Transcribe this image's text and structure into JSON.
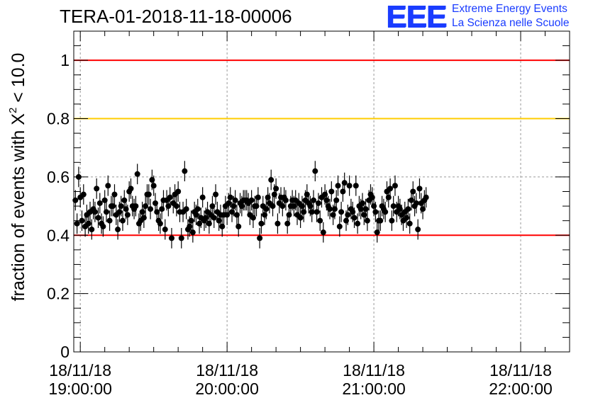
{
  "title": "TERA-01-2018-11-18-00006",
  "logo": {
    "mark": "EEE",
    "line1": "Extreme Energy Events",
    "line2": "La Scienza nelle Scuole"
  },
  "chart_data": {
    "type": "scatter",
    "title": "TERA-01-2018-11-18-00006",
    "ylabel_parts": [
      "fraction of events with ",
      "X",
      "2",
      " < 10.0"
    ],
    "ylim": [
      0,
      1.1
    ],
    "yticks": [
      0,
      0.2,
      0.4,
      0.6,
      0.8,
      1
    ],
    "ytick_labels": [
      "0",
      "0.2",
      "0.4",
      "0.6",
      "0.8",
      "1"
    ],
    "xlim": [
      "18:57:20",
      "22:20:00"
    ],
    "xticks": [
      {
        "time": "19:00:00",
        "label": [
          "18/11/18",
          "19:00:00"
        ]
      },
      {
        "time": "20:00:00",
        "label": [
          "18/11/18",
          "20:00:00"
        ]
      },
      {
        "time": "21:00:00",
        "label": [
          "18/11/18",
          "21:00:00"
        ]
      },
      {
        "time": "22:00:00",
        "label": [
          "18/11/18",
          "22:00:00"
        ]
      }
    ],
    "grid": true,
    "reference_lines": [
      {
        "y": 1.0,
        "color": "#ff0000"
      },
      {
        "y": 0.8,
        "color": "#ffcc00"
      },
      {
        "y": 0.4,
        "color": "#ff0000"
      }
    ],
    "marker_color": "#000000",
    "error_bar": 0.035,
    "x_start": "18:57:20",
    "x_step_seconds": 40,
    "values": [
      0.52,
      0.44,
      0.6,
      0.53,
      0.45,
      0.54,
      0.43,
      0.47,
      0.44,
      0.48,
      0.42,
      0.49,
      0.48,
      0.56,
      0.46,
      0.51,
      0.44,
      0.43,
      0.52,
      0.48,
      0.57,
      0.45,
      0.5,
      0.5,
      0.54,
      0.47,
      0.42,
      0.48,
      0.5,
      0.45,
      0.52,
      0.49,
      0.47,
      0.55,
      0.56,
      0.5,
      0.49,
      0.5,
      0.61,
      0.44,
      0.45,
      0.48,
      0.46,
      0.5,
      0.54,
      0.54,
      0.49,
      0.59,
      0.57,
      0.51,
      0.48,
      0.45,
      0.44,
      0.49,
      0.52,
      0.42,
      0.52,
      0.5,
      0.53,
      0.39,
      0.51,
      0.54,
      0.5,
      0.55,
      0.48,
      0.39,
      0.48,
      0.62,
      0.49,
      0.42,
      0.43,
      0.45,
      0.41,
      0.48,
      0.47,
      0.49,
      0.44,
      0.46,
      0.53,
      0.45,
      0.46,
      0.48,
      0.44,
      0.47,
      0.5,
      0.46,
      0.54,
      0.48,
      0.45,
      0.47,
      0.43,
      0.47,
      0.5,
      0.47,
      0.51,
      0.53,
      0.48,
      0.5,
      0.52,
      0.47,
      0.43,
      0.51,
      0.5,
      0.52,
      0.52,
      0.52,
      0.51,
      0.47,
      0.52,
      0.46,
      0.5,
      0.5,
      0.53,
      0.39,
      0.44,
      0.5,
      0.47,
      0.49,
      0.53,
      0.51,
      0.59,
      0.5,
      0.54,
      0.56,
      0.44,
      0.51,
      0.53,
      0.5,
      0.53,
      0.52,
      0.44,
      0.47,
      0.5,
      0.52,
      0.5,
      0.52,
      0.47,
      0.51,
      0.46,
      0.5,
      0.48,
      0.52,
      0.54,
      0.51,
      0.5,
      0.48,
      0.52,
      0.62,
      0.48,
      0.51,
      0.45,
      0.53,
      0.41,
      0.54,
      0.52,
      0.5,
      0.49,
      0.55,
      0.47,
      0.49,
      0.52,
      0.57,
      0.43,
      0.48,
      0.55,
      0.58,
      0.45,
      0.47,
      0.57,
      0.49,
      0.48,
      0.46,
      0.57,
      0.44,
      0.5,
      0.49,
      0.51,
      0.47,
      0.49,
      0.45,
      0.52,
      0.54,
      0.53,
      0.5,
      0.48,
      0.41,
      0.45,
      0.45,
      0.5,
      0.49,
      0.48,
      0.55,
      0.53,
      0.56,
      0.45,
      0.5,
      0.57,
      0.48,
      0.5,
      0.49,
      0.47,
      0.45,
      0.48,
      0.46,
      0.49,
      0.44,
      0.52,
      0.55,
      0.5,
      0.51,
      0.42,
      0.56,
      0.51,
      0.49,
      0.52,
      0.53
    ]
  }
}
